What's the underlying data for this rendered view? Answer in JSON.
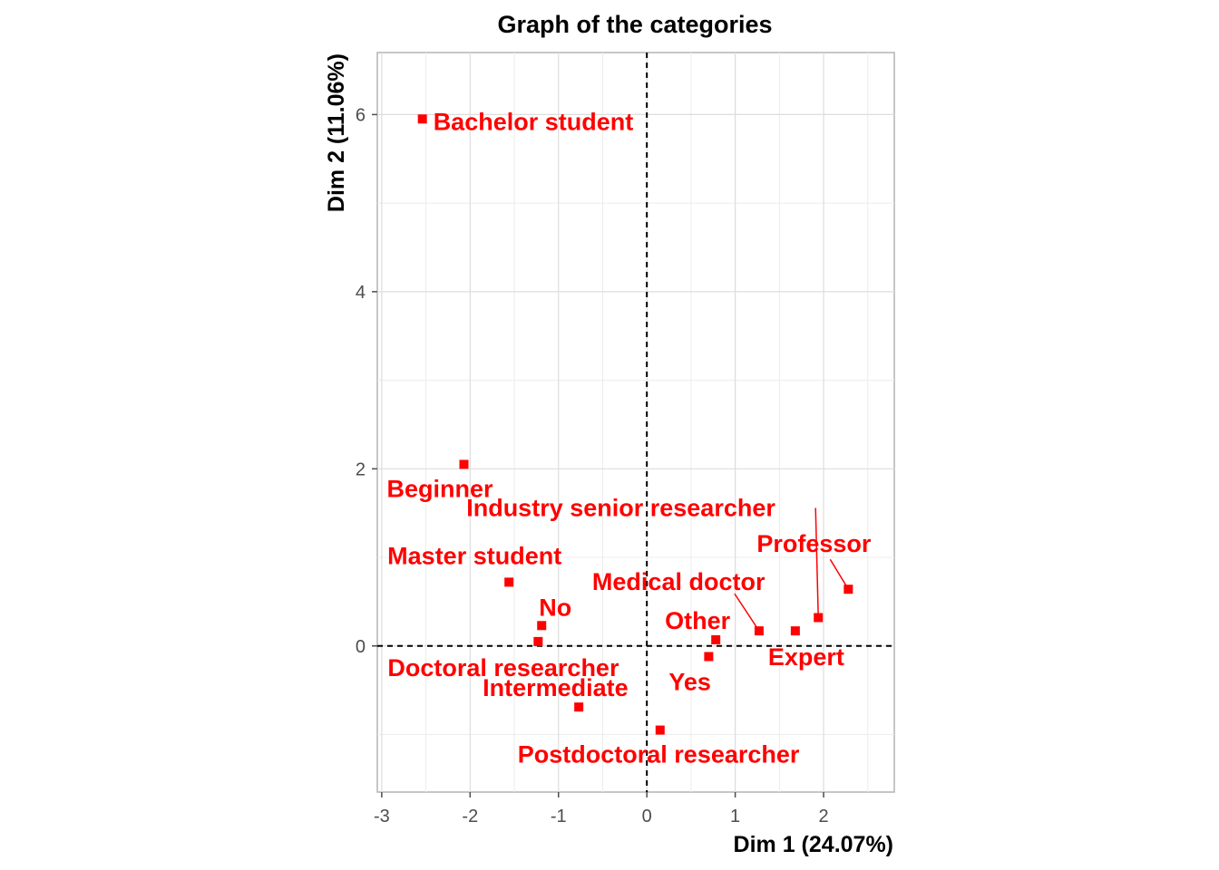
{
  "chart_data": {
    "type": "scatter",
    "title": "Graph of the categories",
    "xlabel": "Dim 1 (24.07%)",
    "ylabel": "Dim 2 (11.06%)",
    "xlim": [
      -3.05,
      2.8
    ],
    "ylim": [
      -1.65,
      6.7
    ],
    "xticks": [
      -3,
      -2,
      -1,
      0,
      1,
      2
    ],
    "yticks": [
      0,
      2,
      4,
      6
    ],
    "grid": true,
    "point_color": "#ff0000",
    "points": [
      {
        "label": "Bachelor student",
        "x": -2.54,
        "y": 5.95
      },
      {
        "label": "Beginner",
        "x": -2.07,
        "y": 2.05
      },
      {
        "label": "Industry senior researcher",
        "x": 1.94,
        "y": 0.32
      },
      {
        "label": "Professor",
        "x": 2.28,
        "y": 0.64
      },
      {
        "label": "Master student",
        "x": -1.56,
        "y": 0.72
      },
      {
        "label": "Medical doctor",
        "x": 1.27,
        "y": 0.17
      },
      {
        "label": "No",
        "x": -1.19,
        "y": 0.23
      },
      {
        "label": "Other",
        "x": 0.78,
        "y": 0.07
      },
      {
        "label": "Expert",
        "x": 1.68,
        "y": 0.17
      },
      {
        "label": "Doctoral researcher",
        "x": -1.23,
        "y": 0.05
      },
      {
        "label": "Yes",
        "x": 0.7,
        "y": -0.12
      },
      {
        "label": "Intermediate",
        "x": -0.77,
        "y": -0.69
      },
      {
        "label": "Postdoctoral researcher",
        "x": 0.15,
        "y": -0.95
      }
    ]
  }
}
